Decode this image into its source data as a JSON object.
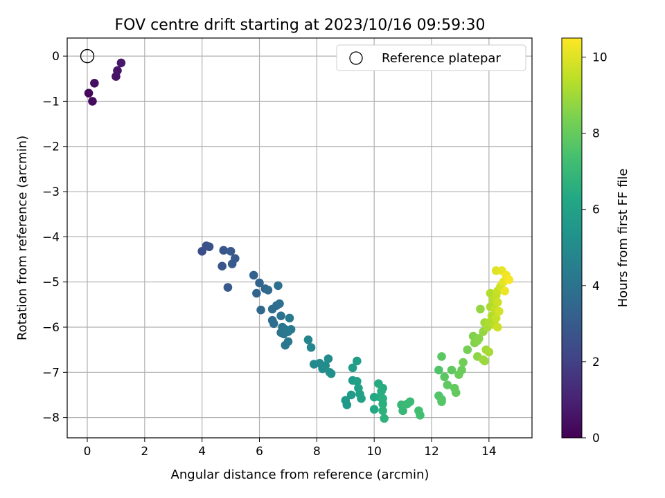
{
  "chart_data": {
    "type": "scatter",
    "title": "FOV centre drift starting at 2023/10/16 09:59:30",
    "xlabel": "Angular distance from reference (arcmin)",
    "ylabel": "Rotation from reference (arcmin)",
    "xlim": [
      -0.7,
      15.5
    ],
    "ylim": [
      -8.45,
      0.4
    ],
    "xticks": [
      0,
      2,
      4,
      6,
      8,
      10,
      12,
      14
    ],
    "yticks": [
      0,
      -1,
      -2,
      -3,
      -4,
      -5,
      -6,
      -7,
      -8
    ],
    "grid": true,
    "legend": {
      "placement": "top-right",
      "entries": [
        "Reference platepar"
      ]
    },
    "reference_point": {
      "x": 0,
      "y": 0,
      "label": "Reference platepar"
    },
    "colorbar": {
      "label": "Hours from first FF file",
      "range": [
        0,
        10.5
      ],
      "ticks": [
        0,
        2,
        4,
        6,
        8,
        10
      ],
      "colormap": "viridis"
    },
    "points": [
      {
        "x": 0.05,
        "y": -0.82,
        "c": 0.2
      },
      {
        "x": 0.18,
        "y": -1.0,
        "c": 0.3
      },
      {
        "x": 0.25,
        "y": -0.6,
        "c": 0.4
      },
      {
        "x": 1.0,
        "y": -0.45,
        "c": 0.5
      },
      {
        "x": 1.05,
        "y": -0.32,
        "c": 0.6
      },
      {
        "x": 1.18,
        "y": -0.15,
        "c": 0.7
      },
      {
        "x": 4.0,
        "y": -4.32,
        "c": 2.5
      },
      {
        "x": 4.15,
        "y": -4.2,
        "c": 2.6
      },
      {
        "x": 4.25,
        "y": -4.22,
        "c": 2.6
      },
      {
        "x": 4.7,
        "y": -4.65,
        "c": 2.8
      },
      {
        "x": 4.75,
        "y": -4.3,
        "c": 2.8
      },
      {
        "x": 4.9,
        "y": -5.12,
        "c": 2.9
      },
      {
        "x": 5.0,
        "y": -4.32,
        "c": 2.9
      },
      {
        "x": 5.05,
        "y": -4.6,
        "c": 3.0
      },
      {
        "x": 5.15,
        "y": -4.48,
        "c": 3.0
      },
      {
        "x": 5.8,
        "y": -4.85,
        "c": 3.3
      },
      {
        "x": 5.9,
        "y": -5.25,
        "c": 3.4
      },
      {
        "x": 6.0,
        "y": -5.02,
        "c": 3.4
      },
      {
        "x": 6.05,
        "y": -5.62,
        "c": 3.5
      },
      {
        "x": 6.2,
        "y": -5.15,
        "c": 3.5
      },
      {
        "x": 6.3,
        "y": -5.18,
        "c": 3.6
      },
      {
        "x": 6.45,
        "y": -5.6,
        "c": 3.7
      },
      {
        "x": 6.45,
        "y": -5.85,
        "c": 3.7
      },
      {
        "x": 6.5,
        "y": -5.92,
        "c": 3.8
      },
      {
        "x": 6.6,
        "y": -5.52,
        "c": 3.8
      },
      {
        "x": 6.65,
        "y": -5.08,
        "c": 3.9
      },
      {
        "x": 6.7,
        "y": -5.48,
        "c": 3.9
      },
      {
        "x": 6.75,
        "y": -5.75,
        "c": 4.0
      },
      {
        "x": 6.75,
        "y": -6.12,
        "c": 4.0
      },
      {
        "x": 6.8,
        "y": -6.0,
        "c": 4.0
      },
      {
        "x": 6.85,
        "y": -6.15,
        "c": 4.1
      },
      {
        "x": 6.9,
        "y": -6.05,
        "c": 4.1
      },
      {
        "x": 6.9,
        "y": -6.4,
        "c": 4.2
      },
      {
        "x": 7.0,
        "y": -6.32,
        "c": 4.2
      },
      {
        "x": 7.0,
        "y": -6.1,
        "c": 4.2
      },
      {
        "x": 7.05,
        "y": -5.8,
        "c": 4.3
      },
      {
        "x": 7.1,
        "y": -6.05,
        "c": 4.3
      },
      {
        "x": 7.7,
        "y": -6.28,
        "c": 4.7
      },
      {
        "x": 7.8,
        "y": -6.45,
        "c": 4.8
      },
      {
        "x": 7.9,
        "y": -6.82,
        "c": 4.9
      },
      {
        "x": 8.1,
        "y": -6.8,
        "c": 5.0
      },
      {
        "x": 8.2,
        "y": -6.92,
        "c": 5.0
      },
      {
        "x": 8.3,
        "y": -6.85,
        "c": 5.1
      },
      {
        "x": 8.4,
        "y": -6.7,
        "c": 5.1
      },
      {
        "x": 8.45,
        "y": -7.0,
        "c": 5.2
      },
      {
        "x": 8.5,
        "y": -7.03,
        "c": 5.2
      },
      {
        "x": 9.0,
        "y": -7.62,
        "c": 5.6
      },
      {
        "x": 9.05,
        "y": -7.72,
        "c": 5.6
      },
      {
        "x": 9.2,
        "y": -7.5,
        "c": 5.7
      },
      {
        "x": 9.25,
        "y": -7.18,
        "c": 5.7
      },
      {
        "x": 9.25,
        "y": -6.9,
        "c": 5.8
      },
      {
        "x": 9.4,
        "y": -6.75,
        "c": 5.8
      },
      {
        "x": 9.4,
        "y": -7.2,
        "c": 5.9
      },
      {
        "x": 9.45,
        "y": -7.35,
        "c": 5.9
      },
      {
        "x": 9.5,
        "y": -7.48,
        "c": 6.0
      },
      {
        "x": 9.55,
        "y": -7.58,
        "c": 6.0
      },
      {
        "x": 10.0,
        "y": -7.55,
        "c": 6.3
      },
      {
        "x": 10.0,
        "y": -7.82,
        "c": 6.3
      },
      {
        "x": 10.15,
        "y": -7.25,
        "c": 6.4
      },
      {
        "x": 10.2,
        "y": -7.55,
        "c": 6.4
      },
      {
        "x": 10.25,
        "y": -7.42,
        "c": 6.5
      },
      {
        "x": 10.3,
        "y": -7.35,
        "c": 6.5
      },
      {
        "x": 10.3,
        "y": -7.58,
        "c": 6.6
      },
      {
        "x": 10.3,
        "y": -7.7,
        "c": 6.6
      },
      {
        "x": 10.3,
        "y": -7.85,
        "c": 6.7
      },
      {
        "x": 10.35,
        "y": -8.02,
        "c": 6.7
      },
      {
        "x": 10.95,
        "y": -7.72,
        "c": 7.0
      },
      {
        "x": 11.0,
        "y": -7.85,
        "c": 7.0
      },
      {
        "x": 11.15,
        "y": -7.7,
        "c": 7.1
      },
      {
        "x": 11.25,
        "y": -7.65,
        "c": 7.1
      },
      {
        "x": 11.55,
        "y": -7.85,
        "c": 7.3
      },
      {
        "x": 11.6,
        "y": -7.95,
        "c": 7.3
      },
      {
        "x": 12.25,
        "y": -6.95,
        "c": 7.6
      },
      {
        "x": 12.25,
        "y": -7.52,
        "c": 7.6
      },
      {
        "x": 12.35,
        "y": -7.6,
        "c": 7.7
      },
      {
        "x": 12.35,
        "y": -7.65,
        "c": 7.7
      },
      {
        "x": 12.35,
        "y": -6.65,
        "c": 7.8
      },
      {
        "x": 12.45,
        "y": -7.1,
        "c": 7.8
      },
      {
        "x": 12.55,
        "y": -7.28,
        "c": 7.9
      },
      {
        "x": 12.7,
        "y": -6.95,
        "c": 7.9
      },
      {
        "x": 12.8,
        "y": -7.35,
        "c": 8.0
      },
      {
        "x": 12.85,
        "y": -7.45,
        "c": 8.0
      },
      {
        "x": 12.95,
        "y": -7.05,
        "c": 8.1
      },
      {
        "x": 13.05,
        "y": -6.95,
        "c": 8.1
      },
      {
        "x": 13.1,
        "y": -6.78,
        "c": 8.2
      },
      {
        "x": 13.25,
        "y": -6.5,
        "c": 8.3
      },
      {
        "x": 13.45,
        "y": -6.2,
        "c": 8.5
      },
      {
        "x": 13.5,
        "y": -6.35,
        "c": 8.5
      },
      {
        "x": 13.6,
        "y": -6.3,
        "c": 8.6
      },
      {
        "x": 13.65,
        "y": -6.25,
        "c": 8.6
      },
      {
        "x": 13.6,
        "y": -6.65,
        "c": 8.7
      },
      {
        "x": 13.7,
        "y": -5.6,
        "c": 8.8
      },
      {
        "x": 13.8,
        "y": -6.1,
        "c": 8.8
      },
      {
        "x": 13.8,
        "y": -6.72,
        "c": 8.9
      },
      {
        "x": 13.85,
        "y": -6.75,
        "c": 8.9
      },
      {
        "x": 13.85,
        "y": -5.9,
        "c": 9.0
      },
      {
        "x": 13.9,
        "y": -6.5,
        "c": 9.0
      },
      {
        "x": 13.95,
        "y": -6.0,
        "c": 9.1
      },
      {
        "x": 14.0,
        "y": -6.55,
        "c": 9.1
      },
      {
        "x": 14.0,
        "y": -5.9,
        "c": 9.2
      },
      {
        "x": 14.05,
        "y": -5.55,
        "c": 9.2
      },
      {
        "x": 14.05,
        "y": -5.25,
        "c": 9.3
      },
      {
        "x": 14.1,
        "y": -5.75,
        "c": 9.3
      },
      {
        "x": 14.15,
        "y": -5.4,
        "c": 9.4
      },
      {
        "x": 14.2,
        "y": -5.95,
        "c": 9.4
      },
      {
        "x": 14.2,
        "y": -5.6,
        "c": 9.5
      },
      {
        "x": 14.25,
        "y": -5.3,
        "c": 9.5
      },
      {
        "x": 14.25,
        "y": -5.8,
        "c": 9.6
      },
      {
        "x": 14.3,
        "y": -5.2,
        "c": 9.6
      },
      {
        "x": 14.3,
        "y": -5.45,
        "c": 9.7
      },
      {
        "x": 14.3,
        "y": -6.0,
        "c": 9.7
      },
      {
        "x": 14.35,
        "y": -5.65,
        "c": 9.8
      },
      {
        "x": 14.4,
        "y": -5.1,
        "c": 9.8
      },
      {
        "x": 14.25,
        "y": -4.75,
        "c": 10.0
      },
      {
        "x": 14.45,
        "y": -4.75,
        "c": 10.1
      },
      {
        "x": 14.5,
        "y": -5.0,
        "c": 10.1
      },
      {
        "x": 14.55,
        "y": -5.2,
        "c": 10.2
      },
      {
        "x": 14.6,
        "y": -4.85,
        "c": 10.3
      },
      {
        "x": 14.7,
        "y": -4.95,
        "c": 10.4
      }
    ]
  }
}
